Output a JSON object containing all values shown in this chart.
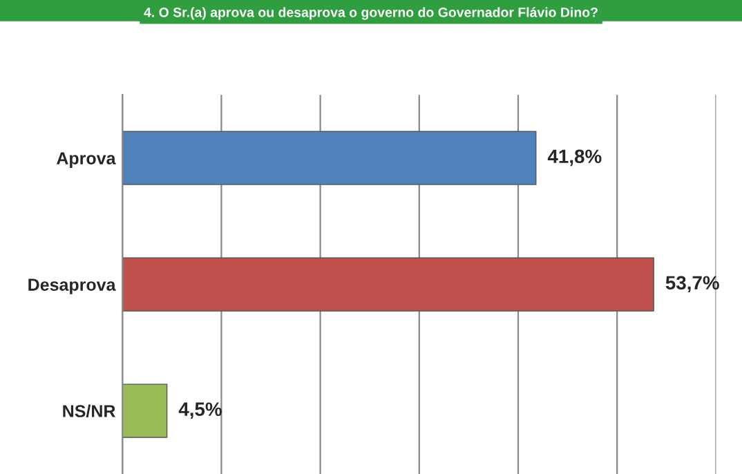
{
  "chart_data": {
    "type": "bar",
    "orientation": "horizontal",
    "title": "4. O Sr.(a) aprova ou desaprova o governo do Governador Flávio Dino?",
    "categories": [
      "Aprova",
      "Desaprova",
      "NS/NR"
    ],
    "values": [
      41.8,
      53.7,
      4.5
    ],
    "colors": [
      "#4f81bd",
      "#c0504d",
      "#9bbb59"
    ],
    "value_labels": [
      "41,8%",
      "53,7%",
      "4,5%"
    ],
    "xlim": [
      0,
      60
    ],
    "xticks": [
      {
        "value": 0,
        "label": null
      },
      {
        "value": 10,
        "label": null
      },
      {
        "value": 20,
        "label": null
      },
      {
        "value": 30,
        "label": null
      },
      {
        "value": 40,
        "label": null
      },
      {
        "value": 50,
        "label": null
      },
      {
        "value": 60,
        "label": null
      }
    ],
    "grid": "x",
    "tick_labels": "y",
    "legend": false
  }
}
